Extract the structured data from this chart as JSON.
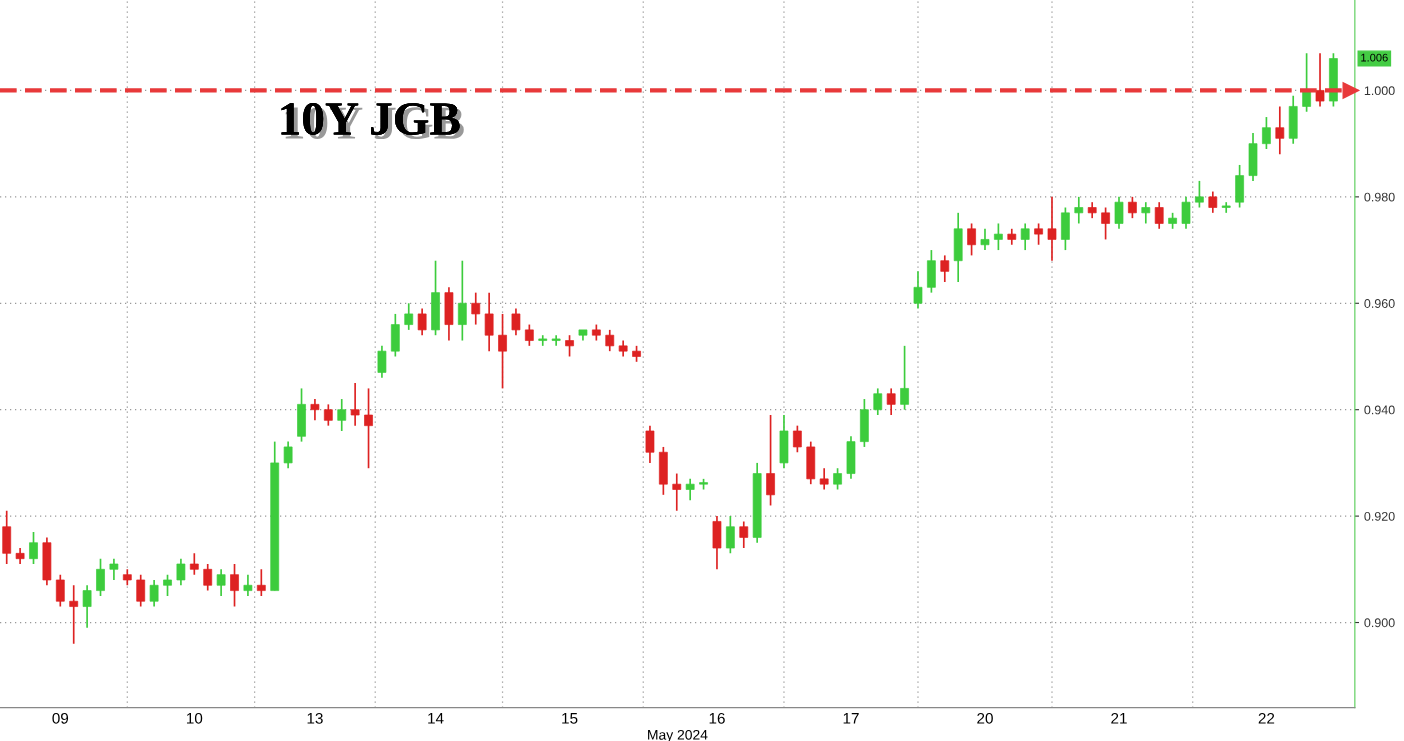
{
  "chart_data": {
    "type": "candlestick",
    "title": "10Y JGB",
    "xlabel": "May 2024",
    "categories": [
      null,
      null,
      null,
      null,
      "09",
      null,
      null,
      null,
      null,
      null,
      null,
      null,
      null,
      null,
      "10",
      null,
      null,
      null,
      null,
      null,
      null,
      null,
      null,
      "13",
      null,
      null,
      null,
      null,
      null,
      null,
      null,
      null,
      "14",
      null,
      null,
      null,
      null,
      null,
      null,
      null,
      null,
      null,
      "15",
      null,
      null,
      null,
      null,
      null,
      null,
      null,
      null,
      null,
      null,
      "16",
      null,
      null,
      null,
      null,
      null,
      null,
      null,
      null,
      null,
      "17",
      null,
      null,
      null,
      null,
      null,
      null,
      null,
      null,
      null,
      "20",
      null,
      null,
      null,
      null,
      null,
      null,
      null,
      null,
      null,
      "21",
      null,
      null,
      null,
      null,
      null,
      null,
      null,
      null,
      null,
      null,
      "22",
      null,
      null,
      null,
      null,
      null
    ],
    "ohlc": [
      [
        0.918,
        0.921,
        0.911,
        0.913
      ],
      [
        0.913,
        0.914,
        0.911,
        0.912
      ],
      [
        0.912,
        0.917,
        0.911,
        0.915
      ],
      [
        0.915,
        0.916,
        0.907,
        0.908
      ],
      [
        0.908,
        0.909,
        0.903,
        0.904
      ],
      [
        0.904,
        0.907,
        0.896,
        0.903
      ],
      [
        0.903,
        0.907,
        0.899,
        0.906
      ],
      [
        0.906,
        0.912,
        0.905,
        0.91
      ],
      [
        0.91,
        0.912,
        0.908,
        0.911
      ],
      [
        0.909,
        0.91,
        0.907,
        0.908
      ],
      [
        0.908,
        0.909,
        0.903,
        0.904
      ],
      [
        0.904,
        0.908,
        0.903,
        0.907
      ],
      [
        0.907,
        0.909,
        0.905,
        0.908
      ],
      [
        0.908,
        0.912,
        0.907,
        0.911
      ],
      [
        0.911,
        0.913,
        0.909,
        0.91
      ],
      [
        0.91,
        0.911,
        0.906,
        0.907
      ],
      [
        0.907,
        0.91,
        0.905,
        0.909
      ],
      [
        0.909,
        0.911,
        0.903,
        0.906
      ],
      [
        0.906,
        0.909,
        0.905,
        0.907
      ],
      [
        0.907,
        0.91,
        0.905,
        0.906
      ],
      [
        0.906,
        0.934,
        0.906,
        0.93
      ],
      [
        0.93,
        0.934,
        0.929,
        0.933
      ],
      [
        0.935,
        0.944,
        0.934,
        0.941
      ],
      [
        0.941,
        0.942,
        0.938,
        0.94
      ],
      [
        0.94,
        0.941,
        0.937,
        0.938
      ],
      [
        0.938,
        0.942,
        0.936,
        0.94
      ],
      [
        0.94,
        0.945,
        0.937,
        0.939
      ],
      [
        0.939,
        0.944,
        0.929,
        0.937
      ],
      [
        0.947,
        0.952,
        0.946,
        0.951
      ],
      [
        0.951,
        0.958,
        0.95,
        0.956
      ],
      [
        0.956,
        0.96,
        0.955,
        0.958
      ],
      [
        0.958,
        0.959,
        0.954,
        0.955
      ],
      [
        0.955,
        0.968,
        0.954,
        0.962
      ],
      [
        0.962,
        0.963,
        0.953,
        0.956
      ],
      [
        0.956,
        0.968,
        0.953,
        0.96
      ],
      [
        0.96,
        0.962,
        0.956,
        0.958
      ],
      [
        0.958,
        0.962,
        0.951,
        0.954
      ],
      [
        0.954,
        0.958,
        0.944,
        0.951
      ],
      [
        0.958,
        0.959,
        0.954,
        0.955
      ],
      [
        0.955,
        0.956,
        0.952,
        0.953
      ],
      [
        0.953,
        0.954,
        0.952,
        0.953
      ],
      [
        0.953,
        0.954,
        0.952,
        0.953
      ],
      [
        0.953,
        0.954,
        0.95,
        0.952
      ],
      [
        0.954,
        0.955,
        0.953,
        0.955
      ],
      [
        0.955,
        0.956,
        0.953,
        0.954
      ],
      [
        0.954,
        0.955,
        0.951,
        0.952
      ],
      [
        0.952,
        0.953,
        0.95,
        0.951
      ],
      [
        0.951,
        0.952,
        0.949,
        0.95
      ],
      [
        0.936,
        0.937,
        0.93,
        0.932
      ],
      [
        0.932,
        0.933,
        0.924,
        0.926
      ],
      [
        0.926,
        0.928,
        0.921,
        0.925
      ],
      [
        0.925,
        0.927,
        0.923,
        0.926
      ],
      [
        0.926,
        0.927,
        0.925,
        0.926
      ],
      [
        0.919,
        0.92,
        0.91,
        0.914
      ],
      [
        0.914,
        0.92,
        0.913,
        0.918
      ],
      [
        0.918,
        0.919,
        0.914,
        0.916
      ],
      [
        0.916,
        0.93,
        0.915,
        0.928
      ],
      [
        0.928,
        0.939,
        0.922,
        0.924
      ],
      [
        0.93,
        0.939,
        0.929,
        0.936
      ],
      [
        0.936,
        0.937,
        0.932,
        0.933
      ],
      [
        0.933,
        0.934,
        0.926,
        0.927
      ],
      [
        0.927,
        0.929,
        0.925,
        0.926
      ],
      [
        0.926,
        0.929,
        0.925,
        0.928
      ],
      [
        0.928,
        0.935,
        0.927,
        0.934
      ],
      [
        0.934,
        0.942,
        0.933,
        0.94
      ],
      [
        0.94,
        0.944,
        0.939,
        0.943
      ],
      [
        0.943,
        0.944,
        0.939,
        0.941
      ],
      [
        0.941,
        0.952,
        0.94,
        0.944
      ],
      [
        0.96,
        0.966,
        0.959,
        0.963
      ],
      [
        0.963,
        0.97,
        0.962,
        0.968
      ],
      [
        0.968,
        0.969,
        0.964,
        0.966
      ],
      [
        0.968,
        0.977,
        0.964,
        0.974
      ],
      [
        0.974,
        0.975,
        0.969,
        0.971
      ],
      [
        0.971,
        0.974,
        0.97,
        0.972
      ],
      [
        0.972,
        0.975,
        0.97,
        0.973
      ],
      [
        0.973,
        0.974,
        0.971,
        0.972
      ],
      [
        0.972,
        0.975,
        0.97,
        0.974
      ],
      [
        0.974,
        0.975,
        0.971,
        0.973
      ],
      [
        0.974,
        0.98,
        0.968,
        0.972
      ],
      [
        0.972,
        0.978,
        0.97,
        0.977
      ],
      [
        0.977,
        0.98,
        0.975,
        0.978
      ],
      [
        0.978,
        0.979,
        0.976,
        0.977
      ],
      [
        0.977,
        0.978,
        0.972,
        0.975
      ],
      [
        0.975,
        0.98,
        0.974,
        0.979
      ],
      [
        0.979,
        0.98,
        0.976,
        0.977
      ],
      [
        0.977,
        0.979,
        0.975,
        0.978
      ],
      [
        0.978,
        0.979,
        0.974,
        0.975
      ],
      [
        0.975,
        0.977,
        0.974,
        0.976
      ],
      [
        0.975,
        0.98,
        0.974,
        0.979
      ],
      [
        0.979,
        0.983,
        0.978,
        0.98
      ],
      [
        0.98,
        0.981,
        0.977,
        0.978
      ],
      [
        0.978,
        0.979,
        0.977,
        0.978
      ],
      [
        0.979,
        0.986,
        0.978,
        0.984
      ],
      [
        0.984,
        0.992,
        0.983,
        0.99
      ],
      [
        0.99,
        0.995,
        0.989,
        0.993
      ],
      [
        0.993,
        0.997,
        0.988,
        0.991
      ],
      [
        0.991,
        0.999,
        0.99,
        0.997
      ],
      [
        0.997,
        1.007,
        0.996,
        1.0
      ],
      [
        1.0,
        1.007,
        0.997,
        0.998
      ],
      [
        0.998,
        1.007,
        0.997,
        1.006
      ]
    ],
    "ylim": [
      0.884,
      1.017
    ],
    "yticks": [
      {
        "value": 0.9,
        "label": "0.900"
      },
      {
        "value": 0.92,
        "label": "0.920"
      },
      {
        "value": 0.94,
        "label": "0.940"
      },
      {
        "value": 0.96,
        "label": "0.960"
      },
      {
        "value": 0.98,
        "label": "0.980"
      },
      {
        "value": 1.0,
        "label": "1.000"
      }
    ],
    "grid": true,
    "ref_lines": [
      {
        "axis": "y",
        "value": 1.0,
        "label": null,
        "color": "#e8393a",
        "line_style": "dashed"
      }
    ],
    "annotations": [
      "1.006"
    ]
  }
}
